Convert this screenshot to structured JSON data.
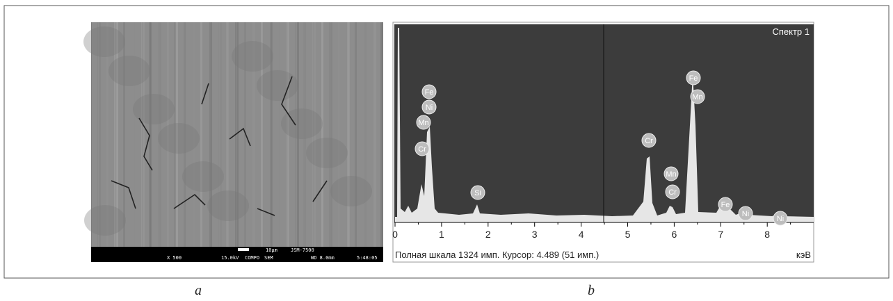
{
  "panels": [
    {
      "caption": "a",
      "image": {
        "scale_bar": "10μm",
        "instrument": "JSM-7500",
        "magnification": "X 500",
        "voltage": "15.0kV",
        "mode": "COMPO",
        "detector": "SEM",
        "wd": "WD 8.0mm",
        "time": "5:48:05"
      }
    },
    {
      "caption": "b",
      "spectrum": {
        "title": "Спектр 1",
        "x_ticks": [
          "0",
          "1",
          "2",
          "3",
          "4",
          "5",
          "6",
          "7",
          "8"
        ],
        "status": "Полная шкала 1324 имп. Курсор: 4.489  (51 имп.)",
        "unit": "кэВ",
        "peak_labels": [
          "Fe",
          "Ni",
          "Mn",
          "Cr",
          "Si",
          "Cr",
          "Mn",
          "Cr",
          "Fe",
          "Mn",
          "Fe",
          "Ni",
          "Ni"
        ]
      }
    }
  ]
}
